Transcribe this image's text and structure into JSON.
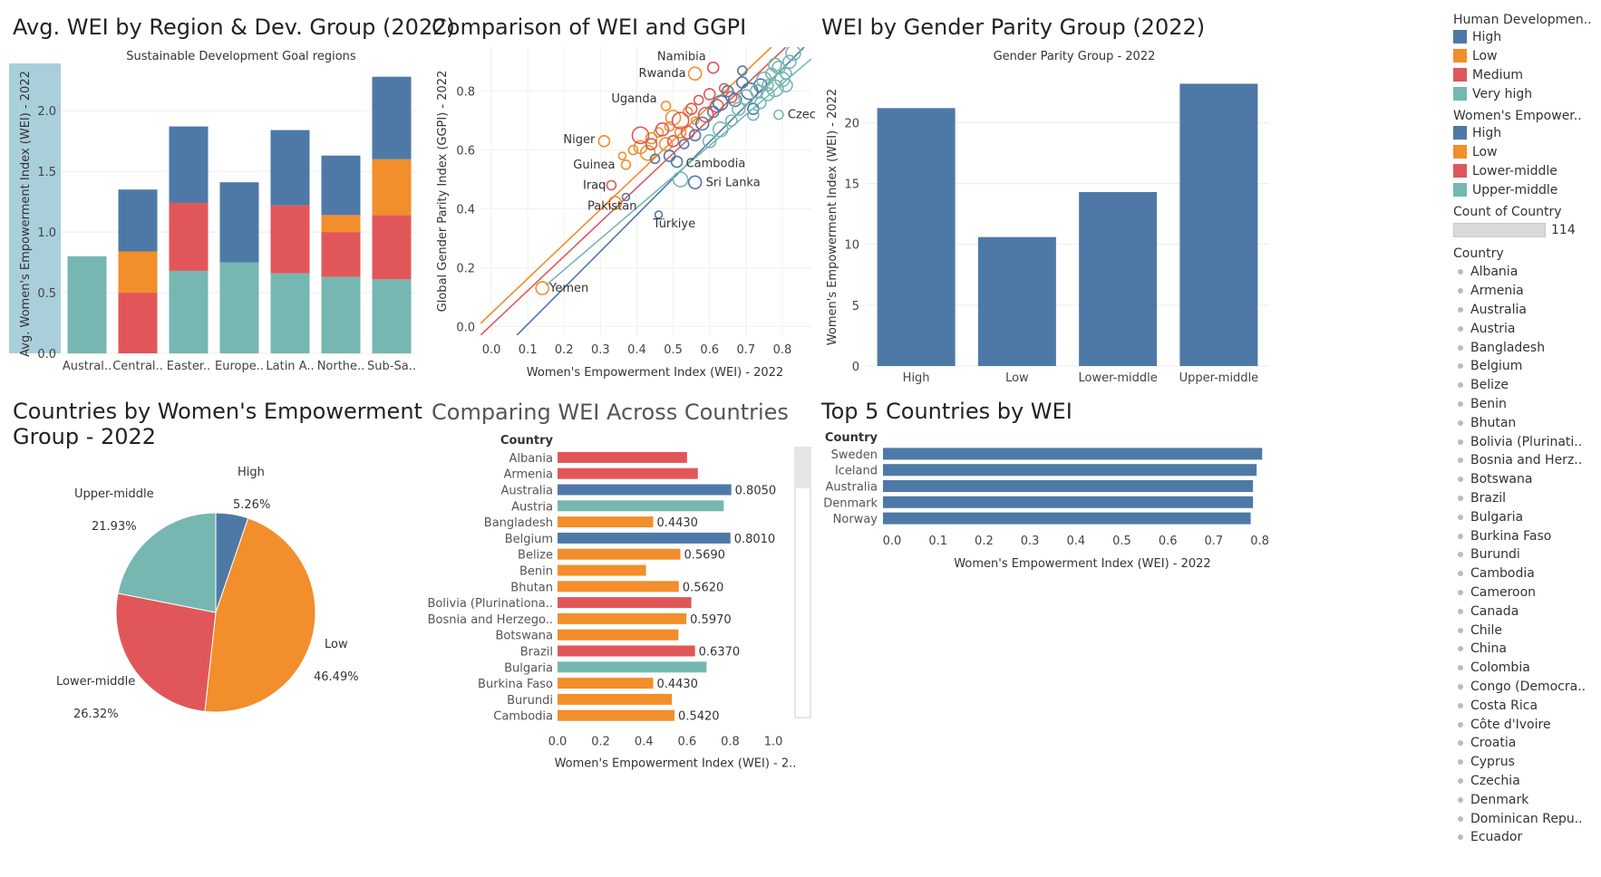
{
  "colors": {
    "high": "#4e79a7",
    "low": "#f28e2b",
    "medium": "#e15759",
    "very_high": "#76b7b2",
    "axis_band": "#a9cfdb"
  },
  "panels": {
    "region": {
      "title": "Avg. WEI by Region & Dev. Group (2022)",
      "subtitle": "Sustainable Development Goal regions"
    },
    "scatter": {
      "title": "Comparison of WEI and GGPI"
    },
    "parity": {
      "title": "WEI by Gender Parity Group (2022)",
      "subtitle": "Gender Parity Group - 2022"
    },
    "pie": {
      "title_line1": "Countries by Women's Empowerment",
      "title_line2": "Group - 2022"
    },
    "compare": {
      "title": "Comparing WEI Across Countries"
    },
    "top5": {
      "title": "Top 5 Countries by WEI"
    }
  },
  "chart_data": [
    {
      "type": "bar",
      "stacked": true,
      "ylabel": "Avg. Women's Empowerment Index (WEI) - 2022",
      "subtitle": "Sustainable Development Goal regions",
      "categories": [
        "Austral..",
        "Central..",
        "Easter..",
        "Europe..",
        "Latin A..",
        "Northe..",
        "Sub-Sa.."
      ],
      "ylim": [
        0,
        2.3
      ],
      "yticks": [
        "0.0",
        "0.5",
        "1.0",
        "1.5",
        "2.0"
      ],
      "series": [
        {
          "name": "Very high",
          "color": "#76b7b2",
          "values": [
            0.8,
            0.0,
            0.68,
            0.75,
            0.66,
            0.63,
            0.61
          ]
        },
        {
          "name": "Medium",
          "color": "#e15759",
          "values": [
            0.0,
            0.5,
            0.56,
            0.0,
            0.56,
            0.37,
            0.53
          ]
        },
        {
          "name": "Low",
          "color": "#f28e2b",
          "values": [
            0.0,
            0.34,
            0.0,
            0.0,
            0.0,
            0.14,
            0.46
          ]
        },
        {
          "name": "High",
          "color": "#4e79a7",
          "values": [
            0.0,
            0.51,
            0.63,
            0.66,
            0.62,
            0.49,
            0.68
          ]
        }
      ]
    },
    {
      "type": "scatter",
      "title": "Comparison of WEI and GGPI",
      "xlabel": "Women's Empowerment Index (WEI) - 2022",
      "ylabel": "Global Gender Parity Index (GGPI) - 2022",
      "xlim": [
        -0.03,
        0.88
      ],
      "ylim": [
        -0.03,
        0.95
      ],
      "xticks": [
        "0.0",
        "0.1",
        "0.2",
        "0.3",
        "0.4",
        "0.5",
        "0.6",
        "0.7",
        "0.8"
      ],
      "yticks": [
        "0.0",
        "0.2",
        "0.4",
        "0.6",
        "0.8"
      ],
      "trendlines": [
        {
          "group": "Low",
          "color": "#f28e2b",
          "x": [
            -0.03,
            0.77
          ],
          "y": [
            0.01,
            0.95
          ]
        },
        {
          "group": "Lower-middle",
          "color": "#e15759",
          "x": [
            -0.03,
            0.81
          ],
          "y": [
            -0.03,
            0.95
          ]
        },
        {
          "group": "High",
          "color": "#4e79a7",
          "x": [
            0.07,
            0.86
          ],
          "y": [
            -0.03,
            0.95
          ]
        },
        {
          "group": "Upper-middle",
          "color": "#76b7b2",
          "x": [
            0.15,
            0.88
          ],
          "y": [
            0.14,
            0.91
          ]
        }
      ],
      "points": [
        {
          "x": 0.14,
          "y": 0.13,
          "r": 7,
          "group": "Low",
          "label": "Yemen"
        },
        {
          "x": 0.31,
          "y": 0.63,
          "r": 6,
          "group": "Low",
          "label": "Niger"
        },
        {
          "x": 0.37,
          "y": 0.44,
          "r": 4,
          "group": "High",
          "label": "Pakistan"
        },
        {
          "x": 0.34,
          "y": 0.42,
          "r": 7,
          "group": "Low"
        },
        {
          "x": 0.33,
          "y": 0.48,
          "r": 5,
          "group": "Lower-middle",
          "label": "Iraq"
        },
        {
          "x": 0.37,
          "y": 0.55,
          "r": 5,
          "group": "Low",
          "label": "Guinea"
        },
        {
          "x": 0.46,
          "y": 0.38,
          "r": 4,
          "group": "High",
          "label": "Türkiye"
        },
        {
          "x": 0.56,
          "y": 0.49,
          "r": 7,
          "group": "High",
          "label": "Sri Lanka"
        },
        {
          "x": 0.51,
          "y": 0.56,
          "r": 6,
          "group": "High",
          "label": "Cambodia"
        },
        {
          "x": 0.48,
          "y": 0.75,
          "r": 5,
          "group": "Low",
          "label": "Uganda"
        },
        {
          "x": 0.56,
          "y": 0.86,
          "r": 7,
          "group": "Low",
          "label": "Rwanda"
        },
        {
          "x": 0.61,
          "y": 0.88,
          "r": 6,
          "group": "Lower-middle",
          "label": "Namibia"
        },
        {
          "x": 0.79,
          "y": 0.72,
          "r": 5,
          "group": "Upper-middle",
          "label": "Czechia"
        },
        {
          "x": 0.36,
          "y": 0.58,
          "r": 4,
          "group": "Low"
        },
        {
          "x": 0.39,
          "y": 0.6,
          "r": 5,
          "group": "Low"
        },
        {
          "x": 0.41,
          "y": 0.61,
          "r": 7,
          "group": "Low"
        },
        {
          "x": 0.43,
          "y": 0.59,
          "r": 8,
          "group": "Low"
        },
        {
          "x": 0.44,
          "y": 0.64,
          "r": 6,
          "group": "Low"
        },
        {
          "x": 0.46,
          "y": 0.66,
          "r": 5,
          "group": "Low"
        },
        {
          "x": 0.48,
          "y": 0.62,
          "r": 7,
          "group": "Low"
        },
        {
          "x": 0.49,
          "y": 0.68,
          "r": 5,
          "group": "Low"
        },
        {
          "x": 0.5,
          "y": 0.71,
          "r": 8,
          "group": "Low"
        },
        {
          "x": 0.52,
          "y": 0.66,
          "r": 6,
          "group": "Low"
        },
        {
          "x": 0.54,
          "y": 0.73,
          "r": 5,
          "group": "Low"
        },
        {
          "x": 0.56,
          "y": 0.7,
          "r": 4,
          "group": "Low"
        },
        {
          "x": 0.41,
          "y": 0.65,
          "r": 9,
          "group": "Lower-middle"
        },
        {
          "x": 0.44,
          "y": 0.62,
          "r": 6,
          "group": "Lower-middle"
        },
        {
          "x": 0.47,
          "y": 0.67,
          "r": 7,
          "group": "Lower-middle"
        },
        {
          "x": 0.5,
          "y": 0.63,
          "r": 6,
          "group": "Lower-middle"
        },
        {
          "x": 0.52,
          "y": 0.7,
          "r": 9,
          "group": "Lower-middle"
        },
        {
          "x": 0.54,
          "y": 0.66,
          "r": 7,
          "group": "Lower-middle"
        },
        {
          "x": 0.55,
          "y": 0.74,
          "r": 6,
          "group": "Lower-middle"
        },
        {
          "x": 0.57,
          "y": 0.77,
          "r": 5,
          "group": "Lower-middle"
        },
        {
          "x": 0.59,
          "y": 0.72,
          "r": 8,
          "group": "Lower-middle"
        },
        {
          "x": 0.6,
          "y": 0.79,
          "r": 6,
          "group": "Lower-middle"
        },
        {
          "x": 0.62,
          "y": 0.75,
          "r": 7,
          "group": "Lower-middle"
        },
        {
          "x": 0.64,
          "y": 0.81,
          "r": 5,
          "group": "Lower-middle"
        },
        {
          "x": 0.66,
          "y": 0.78,
          "r": 6,
          "group": "Lower-middle"
        },
        {
          "x": 0.45,
          "y": 0.57,
          "r": 5,
          "group": "High"
        },
        {
          "x": 0.49,
          "y": 0.58,
          "r": 6,
          "group": "High"
        },
        {
          "x": 0.53,
          "y": 0.62,
          "r": 5,
          "group": "High"
        },
        {
          "x": 0.56,
          "y": 0.65,
          "r": 6,
          "group": "High"
        },
        {
          "x": 0.58,
          "y": 0.69,
          "r": 7,
          "group": "High"
        },
        {
          "x": 0.61,
          "y": 0.73,
          "r": 6,
          "group": "High"
        },
        {
          "x": 0.63,
          "y": 0.76,
          "r": 8,
          "group": "High"
        },
        {
          "x": 0.65,
          "y": 0.8,
          "r": 6,
          "group": "High"
        },
        {
          "x": 0.67,
          "y": 0.77,
          "r": 7,
          "group": "High"
        },
        {
          "x": 0.69,
          "y": 0.83,
          "r": 6,
          "group": "High"
        },
        {
          "x": 0.71,
          "y": 0.8,
          "r": 9,
          "group": "High"
        },
        {
          "x": 0.72,
          "y": 0.74,
          "r": 6,
          "group": "High"
        },
        {
          "x": 0.74,
          "y": 0.82,
          "r": 7,
          "group": "High"
        },
        {
          "x": 0.69,
          "y": 0.87,
          "r": 5,
          "group": "High"
        },
        {
          "x": 0.52,
          "y": 0.5,
          "r": 8,
          "group": "Upper-middle"
        },
        {
          "x": 0.6,
          "y": 0.63,
          "r": 7,
          "group": "Upper-middle"
        },
        {
          "x": 0.63,
          "y": 0.67,
          "r": 8,
          "group": "Upper-middle"
        },
        {
          "x": 0.66,
          "y": 0.7,
          "r": 6,
          "group": "Upper-middle"
        },
        {
          "x": 0.68,
          "y": 0.74,
          "r": 7,
          "group": "Upper-middle"
        },
        {
          "x": 0.7,
          "y": 0.78,
          "r": 8,
          "group": "Upper-middle"
        },
        {
          "x": 0.72,
          "y": 0.72,
          "r": 6,
          "group": "Upper-middle"
        },
        {
          "x": 0.73,
          "y": 0.8,
          "r": 7,
          "group": "Upper-middle"
        },
        {
          "x": 0.74,
          "y": 0.76,
          "r": 6,
          "group": "Upper-middle"
        },
        {
          "x": 0.75,
          "y": 0.84,
          "r": 8,
          "group": "Upper-middle"
        },
        {
          "x": 0.76,
          "y": 0.79,
          "r": 7,
          "group": "Upper-middle"
        },
        {
          "x": 0.77,
          "y": 0.86,
          "r": 6,
          "group": "Upper-middle"
        },
        {
          "x": 0.78,
          "y": 0.81,
          "r": 9,
          "group": "Upper-middle"
        },
        {
          "x": 0.79,
          "y": 0.88,
          "r": 7,
          "group": "Upper-middle"
        },
        {
          "x": 0.8,
          "y": 0.84,
          "r": 8,
          "group": "Upper-middle"
        },
        {
          "x": 0.81,
          "y": 0.86,
          "r": 6,
          "group": "Upper-middle"
        },
        {
          "x": 0.82,
          "y": 0.9,
          "r": 7,
          "group": "Upper-middle"
        },
        {
          "x": 0.83,
          "y": 0.93,
          "r": 8,
          "group": "Upper-middle"
        },
        {
          "x": 0.76,
          "y": 0.82,
          "r": 6,
          "group": "Upper-middle"
        },
        {
          "x": 0.78,
          "y": 0.89,
          "r": 7,
          "group": "Upper-middle"
        },
        {
          "x": 0.81,
          "y": 0.82,
          "r": 7,
          "group": "Upper-middle"
        }
      ]
    },
    {
      "type": "bar",
      "title": "WEI by Gender Parity Group (2022)",
      "subtitle": "Gender Parity Group - 2022",
      "ylabel": "Women's Empowerment Index (WEI) - 2022",
      "categories": [
        "High",
        "Low",
        "Lower-middle",
        "Upper-middle"
      ],
      "values": [
        21.2,
        10.6,
        14.3,
        23.2
      ],
      "ylim": [
        0,
        24.5
      ],
      "yticks": [
        "0",
        "5",
        "10",
        "15",
        "20"
      ],
      "color": "#4e79a7"
    },
    {
      "type": "pie",
      "title": "Countries by Women's Empowerment Group - 2022",
      "slices": [
        {
          "label": "High",
          "value": 5.26,
          "text": "5.26%",
          "color": "#4e79a7"
        },
        {
          "label": "Low",
          "value": 46.49,
          "text": "46.49%",
          "color": "#f28e2b"
        },
        {
          "label": "Lower-middle",
          "value": 26.32,
          "text": "26.32%",
          "color": "#e15759"
        },
        {
          "label": "Upper-middle",
          "value": 21.93,
          "text": "21.93%",
          "color": "#76b7b2"
        }
      ]
    },
    {
      "type": "bar",
      "orientation": "horizontal",
      "title": "Comparing WEI Across Countries",
      "header": "Country",
      "xlabel": "Women's Empowerment Index (WEI) - 2..",
      "xlim": [
        0,
        1.05
      ],
      "xticks": [
        "0.0",
        "0.2",
        "0.4",
        "0.6",
        "0.8",
        "1.0"
      ],
      "rows": [
        {
          "country": "Albania",
          "value": 0.6,
          "color": "#e15759",
          "label": ""
        },
        {
          "country": "Armenia",
          "value": 0.65,
          "color": "#e15759",
          "label": ""
        },
        {
          "country": "Australia",
          "value": 0.805,
          "color": "#4e79a7",
          "label": "0.8050"
        },
        {
          "country": "Austria",
          "value": 0.77,
          "color": "#76b7b2",
          "label": ""
        },
        {
          "country": "Bangladesh",
          "value": 0.443,
          "color": "#f28e2b",
          "label": "0.4430"
        },
        {
          "country": "Belgium",
          "value": 0.801,
          "color": "#4e79a7",
          "label": "0.8010"
        },
        {
          "country": "Belize",
          "value": 0.569,
          "color": "#f28e2b",
          "label": "0.5690"
        },
        {
          "country": "Benin",
          "value": 0.41,
          "color": "#f28e2b",
          "label": ""
        },
        {
          "country": "Bhutan",
          "value": 0.562,
          "color": "#f28e2b",
          "label": "0.5620"
        },
        {
          "country": "Bolivia (Plurinationa..",
          "value": 0.62,
          "color": "#e15759",
          "label": ""
        },
        {
          "country": "Bosnia and Herzego..",
          "value": 0.597,
          "color": "#f28e2b",
          "label": "0.5970"
        },
        {
          "country": "Botswana",
          "value": 0.56,
          "color": "#f28e2b",
          "label": ""
        },
        {
          "country": "Brazil",
          "value": 0.637,
          "color": "#e15759",
          "label": "0.6370"
        },
        {
          "country": "Bulgaria",
          "value": 0.69,
          "color": "#76b7b2",
          "label": ""
        },
        {
          "country": "Burkina Faso",
          "value": 0.443,
          "color": "#f28e2b",
          "label": "0.4430"
        },
        {
          "country": "Burundi",
          "value": 0.53,
          "color": "#f28e2b",
          "label": ""
        },
        {
          "country": "Cambodia",
          "value": 0.542,
          "color": "#f28e2b",
          "label": "0.5420"
        }
      ]
    },
    {
      "type": "bar",
      "orientation": "horizontal",
      "title": "Top 5 Countries by WEI",
      "header": "Country",
      "xlabel": "Women's Empowerment Index (WEI) - 2022",
      "xlim": [
        0,
        0.86
      ],
      "xticks": [
        "0.0",
        "0.1",
        "0.2",
        "0.3",
        "0.4",
        "0.5",
        "0.6",
        "0.7",
        "0.8"
      ],
      "color": "#4e79a7",
      "rows": [
        {
          "country": "Sweden",
          "value": 0.825
        },
        {
          "country": "Iceland",
          "value": 0.813
        },
        {
          "country": "Australia",
          "value": 0.805
        },
        {
          "country": "Denmark",
          "value": 0.805
        },
        {
          "country": "Norway",
          "value": 0.8
        }
      ]
    }
  ],
  "legend": {
    "hd_title": "Human Developmen..",
    "hd_items": [
      {
        "label": "High",
        "color": "#4e79a7"
      },
      {
        "label": "Low",
        "color": "#f28e2b"
      },
      {
        "label": "Medium",
        "color": "#e15759"
      },
      {
        "label": "Very high",
        "color": "#76b7b2"
      }
    ],
    "we_title": "Women's Empower..",
    "we_items": [
      {
        "label": "High",
        "color": "#4e79a7"
      },
      {
        "label": "Low",
        "color": "#f28e2b"
      },
      {
        "label": "Lower-middle",
        "color": "#e15759"
      },
      {
        "label": "Upper-middle",
        "color": "#76b7b2"
      }
    ],
    "count_title": "Count of Country",
    "count_value": "114",
    "country_title": "Country",
    "countries": [
      "Albania",
      "Armenia",
      "Australia",
      "Austria",
      "Bangladesh",
      "Belgium",
      "Belize",
      "Benin",
      "Bhutan",
      "Bolivia (Plurinati..",
      "Bosnia and Herz..",
      "Botswana",
      "Brazil",
      "Bulgaria",
      "Burkina Faso",
      "Burundi",
      "Cambodia",
      "Cameroon",
      "Canada",
      "Chile",
      "China",
      "Colombia",
      "Congo (Democra..",
      "Costa Rica",
      "Côte d'Ivoire",
      "Croatia",
      "Cyprus",
      "Czechia",
      "Denmark",
      "Dominican Repu..",
      "Ecuador"
    ]
  }
}
